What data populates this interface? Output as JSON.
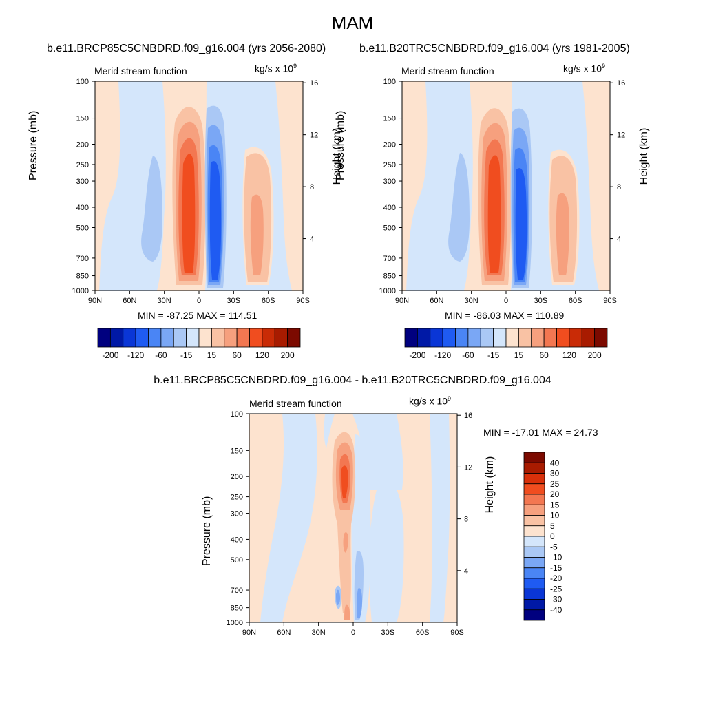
{
  "main_title": "MAM",
  "panels": [
    {
      "id": "top-left",
      "case_title": "b.e11.BRCP85C5CNBDRD.f09_g16.004 (yrs 2056-2080)",
      "left_label": "Merid stream function",
      "right_label": "kg/s x 10",
      "right_label_sup": "9",
      "y_title": "Pressure (mb)",
      "y2_title": "Height (km)",
      "min_max": "MIN = -87.25  MAX = 114.51"
    },
    {
      "id": "top-right",
      "case_title": "b.e11.B20TRC5CNBDRD.f09_g16.004 (yrs 1981-2005)",
      "left_label": "Merid stream function",
      "right_label": "kg/s x 10",
      "right_label_sup": "9",
      "y_title": "Pressure (mb)",
      "y2_title": "Height (km)",
      "min_max": "MIN = -86.03  MAX = 110.89"
    },
    {
      "id": "bottom",
      "case_title": "b.e11.BRCP85C5CNBDRD.f09_g16.004 - b.e11.B20TRC5CNBDRD.f09_g16.004",
      "left_label": "Merid stream function",
      "right_label": "kg/s x 10",
      "right_label_sup": "9",
      "y_title": "Pressure (mb)",
      "y2_title": "Height (km)",
      "min_max": "MIN = -17.01  MAX =  24.73"
    }
  ],
  "chart_data": [
    {
      "type": "heatmap",
      "title": "Merid stream function",
      "ylabel": "Pressure (mb)",
      "y2label": "Height (km)",
      "units": "kg/s x 10^9",
      "x_tick_labels": [
        "90N",
        "60N",
        "30N",
        "0",
        "30S",
        "60S",
        "90S"
      ],
      "x_ticks_deg": [
        90,
        60,
        30,
        0,
        -30,
        -60,
        -90
      ],
      "y_ticks_mb": [
        100,
        150,
        200,
        250,
        300,
        400,
        500,
        700,
        850,
        1000
      ],
      "y_scale": "log",
      "ylim_mb": [
        100,
        1000
      ],
      "y2_ticks_km": [
        16,
        12,
        8,
        4
      ],
      "min": -87.25,
      "max": 114.51,
      "colorbar_levels": [
        "-200",
        "-120",
        "-60",
        "-15",
        "15",
        "60",
        "120",
        "200"
      ]
    },
    {
      "type": "heatmap",
      "title": "Merid stream function",
      "ylabel": "Pressure (mb)",
      "y2label": "Height (km)",
      "units": "kg/s x 10^9",
      "x_tick_labels": [
        "90N",
        "60N",
        "30N",
        "0",
        "30S",
        "60S",
        "90S"
      ],
      "x_ticks_deg": [
        90,
        60,
        30,
        0,
        -30,
        -60,
        -90
      ],
      "y_ticks_mb": [
        100,
        150,
        200,
        250,
        300,
        400,
        500,
        700,
        850,
        1000
      ],
      "y_scale": "log",
      "ylim_mb": [
        100,
        1000
      ],
      "y2_ticks_km": [
        16,
        12,
        8,
        4
      ],
      "min": -86.03,
      "max": 110.89,
      "colorbar_levels": [
        "-200",
        "-120",
        "-60",
        "-15",
        "15",
        "60",
        "120",
        "200"
      ]
    },
    {
      "type": "heatmap",
      "title": "Merid stream function",
      "ylabel": "Pressure (mb)",
      "y2label": "Height (km)",
      "units": "kg/s x 10^9",
      "x_tick_labels": [
        "90N",
        "60N",
        "30N",
        "0",
        "30S",
        "60S",
        "90S"
      ],
      "x_ticks_deg": [
        90,
        60,
        30,
        0,
        -30,
        -60,
        -90
      ],
      "y_ticks_mb": [
        100,
        150,
        200,
        250,
        300,
        400,
        500,
        700,
        850,
        1000
      ],
      "y_scale": "log",
      "ylim_mb": [
        100,
        1000
      ],
      "y2_ticks_km": [
        16,
        12,
        8,
        4
      ],
      "min": -17.01,
      "max": 24.73,
      "colorbar_levels": [
        "40",
        "30",
        "25",
        "20",
        "15",
        "10",
        "5",
        "0",
        "-5",
        "-10",
        "-15",
        "-20",
        "-25",
        "-30",
        "-40"
      ]
    }
  ],
  "colors": {
    "top_palette": [
      "#00007f",
      "#0019a6",
      "#0a36d6",
      "#1f5bf2",
      "#4a85f5",
      "#7aa7f5",
      "#aac8f5",
      "#d4e6fb",
      "#fde3cf",
      "#f9c2a4",
      "#f6a07e",
      "#f37751",
      "#f04d1f",
      "#c92b06",
      "#a81b00",
      "#7c0a00"
    ],
    "diff_palette": [
      "#7c0a00",
      "#a81b00",
      "#d8300a",
      "#f04d1f",
      "#f37751",
      "#f6a07e",
      "#f9c2a4",
      "#fde3cf",
      "#d4e6fb",
      "#aac8f5",
      "#7aa7f5",
      "#4a85f5",
      "#1f5bf2",
      "#0a36d6",
      "#0019a6",
      "#00007f"
    ],
    "light_red": "#fde3cf",
    "light_blue": "#d4e6fb"
  }
}
